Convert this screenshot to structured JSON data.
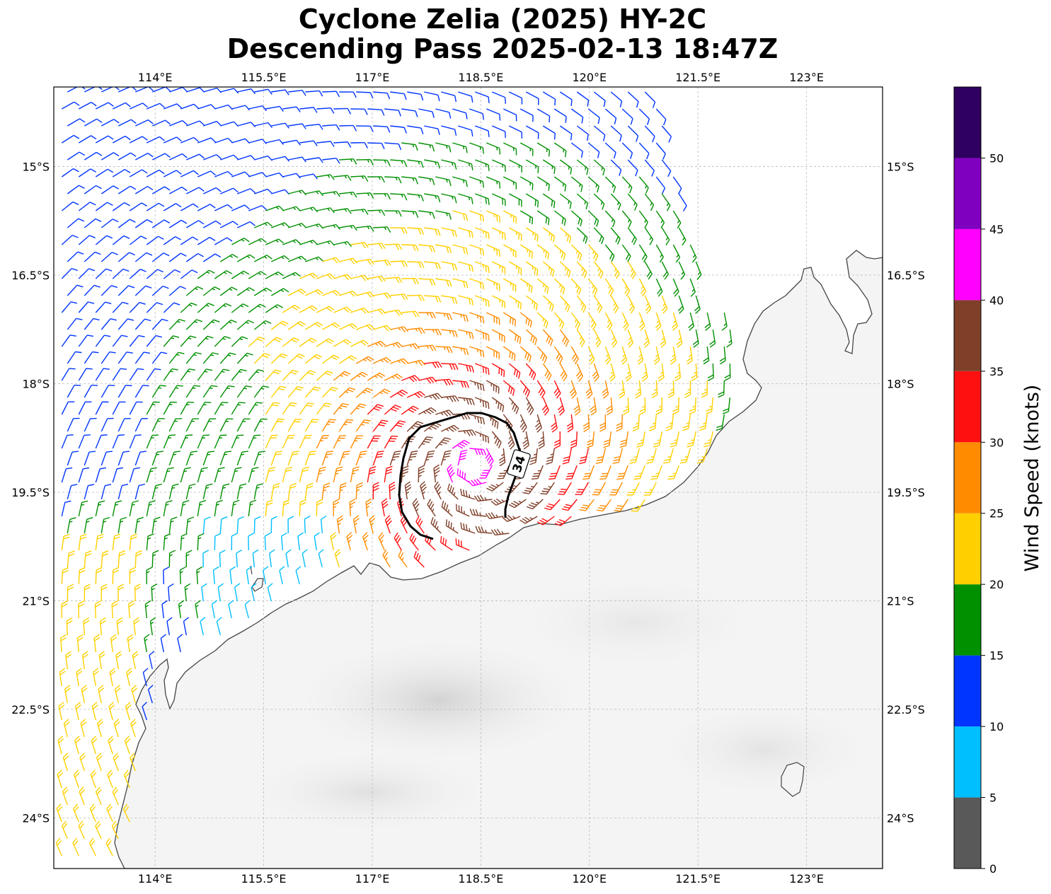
{
  "title": {
    "line1": "Cyclone Zelia (2025) HY-2C",
    "line2": "Descending Pass 2025-02-13 18:47Z"
  },
  "map": {
    "lon_ticks": [
      "114°E",
      "115.5°E",
      "117°E",
      "118.5°E",
      "120°E",
      "121.5°E",
      "123°E"
    ],
    "lat_ticks": [
      "15°S",
      "16.5°S",
      "18°S",
      "19.5°S",
      "21°S",
      "22.5°S",
      "24°S"
    ],
    "extent": {
      "lon": [
        112.6,
        124.05
      ],
      "lat": [
        -13.9,
        -24.7
      ]
    },
    "storm_center": {
      "lon": 118.4,
      "lat": -19.1
    },
    "contour_label": "34",
    "gridlines": true,
    "land_color": "#f5f5f5",
    "coast_color": "#444444"
  },
  "colorbar": {
    "label": "Wind Speed (knots)",
    "ticks": [
      "0",
      "5",
      "10",
      "15",
      "20",
      "25",
      "30",
      "35",
      "40",
      "45",
      "50"
    ],
    "bins": [
      {
        "min": 0,
        "max": 5,
        "color": "#595959"
      },
      {
        "min": 5,
        "max": 10,
        "color": "#00bfff"
      },
      {
        "min": 10,
        "max": 15,
        "color": "#0035ff"
      },
      {
        "min": 15,
        "max": 20,
        "color": "#009000"
      },
      {
        "min": 20,
        "max": 25,
        "color": "#ffd000"
      },
      {
        "min": 25,
        "max": 30,
        "color": "#ff8c00"
      },
      {
        "min": 30,
        "max": 35,
        "color": "#ff1010"
      },
      {
        "min": 35,
        "max": 40,
        "color": "#803f28"
      },
      {
        "min": 40,
        "max": 45,
        "color": "#ff00ff"
      },
      {
        "min": 45,
        "max": 50,
        "color": "#8000c0"
      },
      {
        "min": 50,
        "max": 55,
        "color": "#300060"
      }
    ]
  }
}
